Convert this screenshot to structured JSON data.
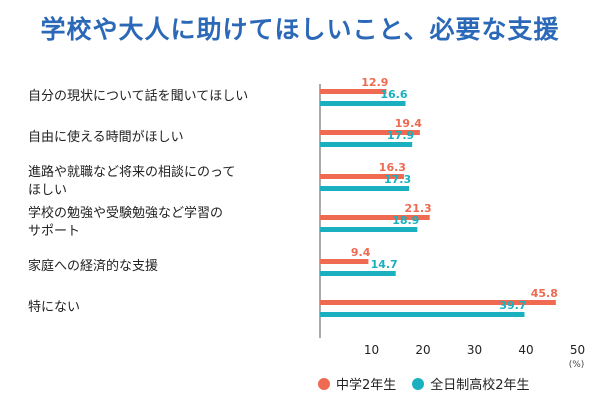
{
  "title": "学校や大人に助けてほしいこと、必要な支援",
  "chart_data": {
    "type": "bar",
    "orientation": "horizontal",
    "title": "学校や大人に助けてほしいこと、必要な支援",
    "categories": [
      [
        "自分の現状について話を聞いてほしい"
      ],
      [
        "自由に使える時間がほしい"
      ],
      [
        "進路や就職など将来の相談にのって",
        "ほしい"
      ],
      [
        "学校の勉強や受験勉強など学習の",
        "サポート"
      ],
      [
        "家庭への経済的な支援"
      ],
      [
        "特にない"
      ]
    ],
    "series": [
      {
        "name": "中学2年生",
        "color": "#ef6a50",
        "values": [
          12.9,
          19.4,
          16.3,
          21.3,
          9.4,
          45.8
        ]
      },
      {
        "name": "全日制高校2年生",
        "color": "#1ab0bf",
        "values": [
          16.6,
          17.9,
          17.3,
          18.9,
          14.7,
          39.7
        ]
      }
    ],
    "xlim": [
      0,
      50
    ],
    "xticks": [
      "10",
      "20",
      "30",
      "40",
      "50"
    ],
    "xunit": "(%)",
    "grid": false,
    "legend_position": "bottom"
  }
}
